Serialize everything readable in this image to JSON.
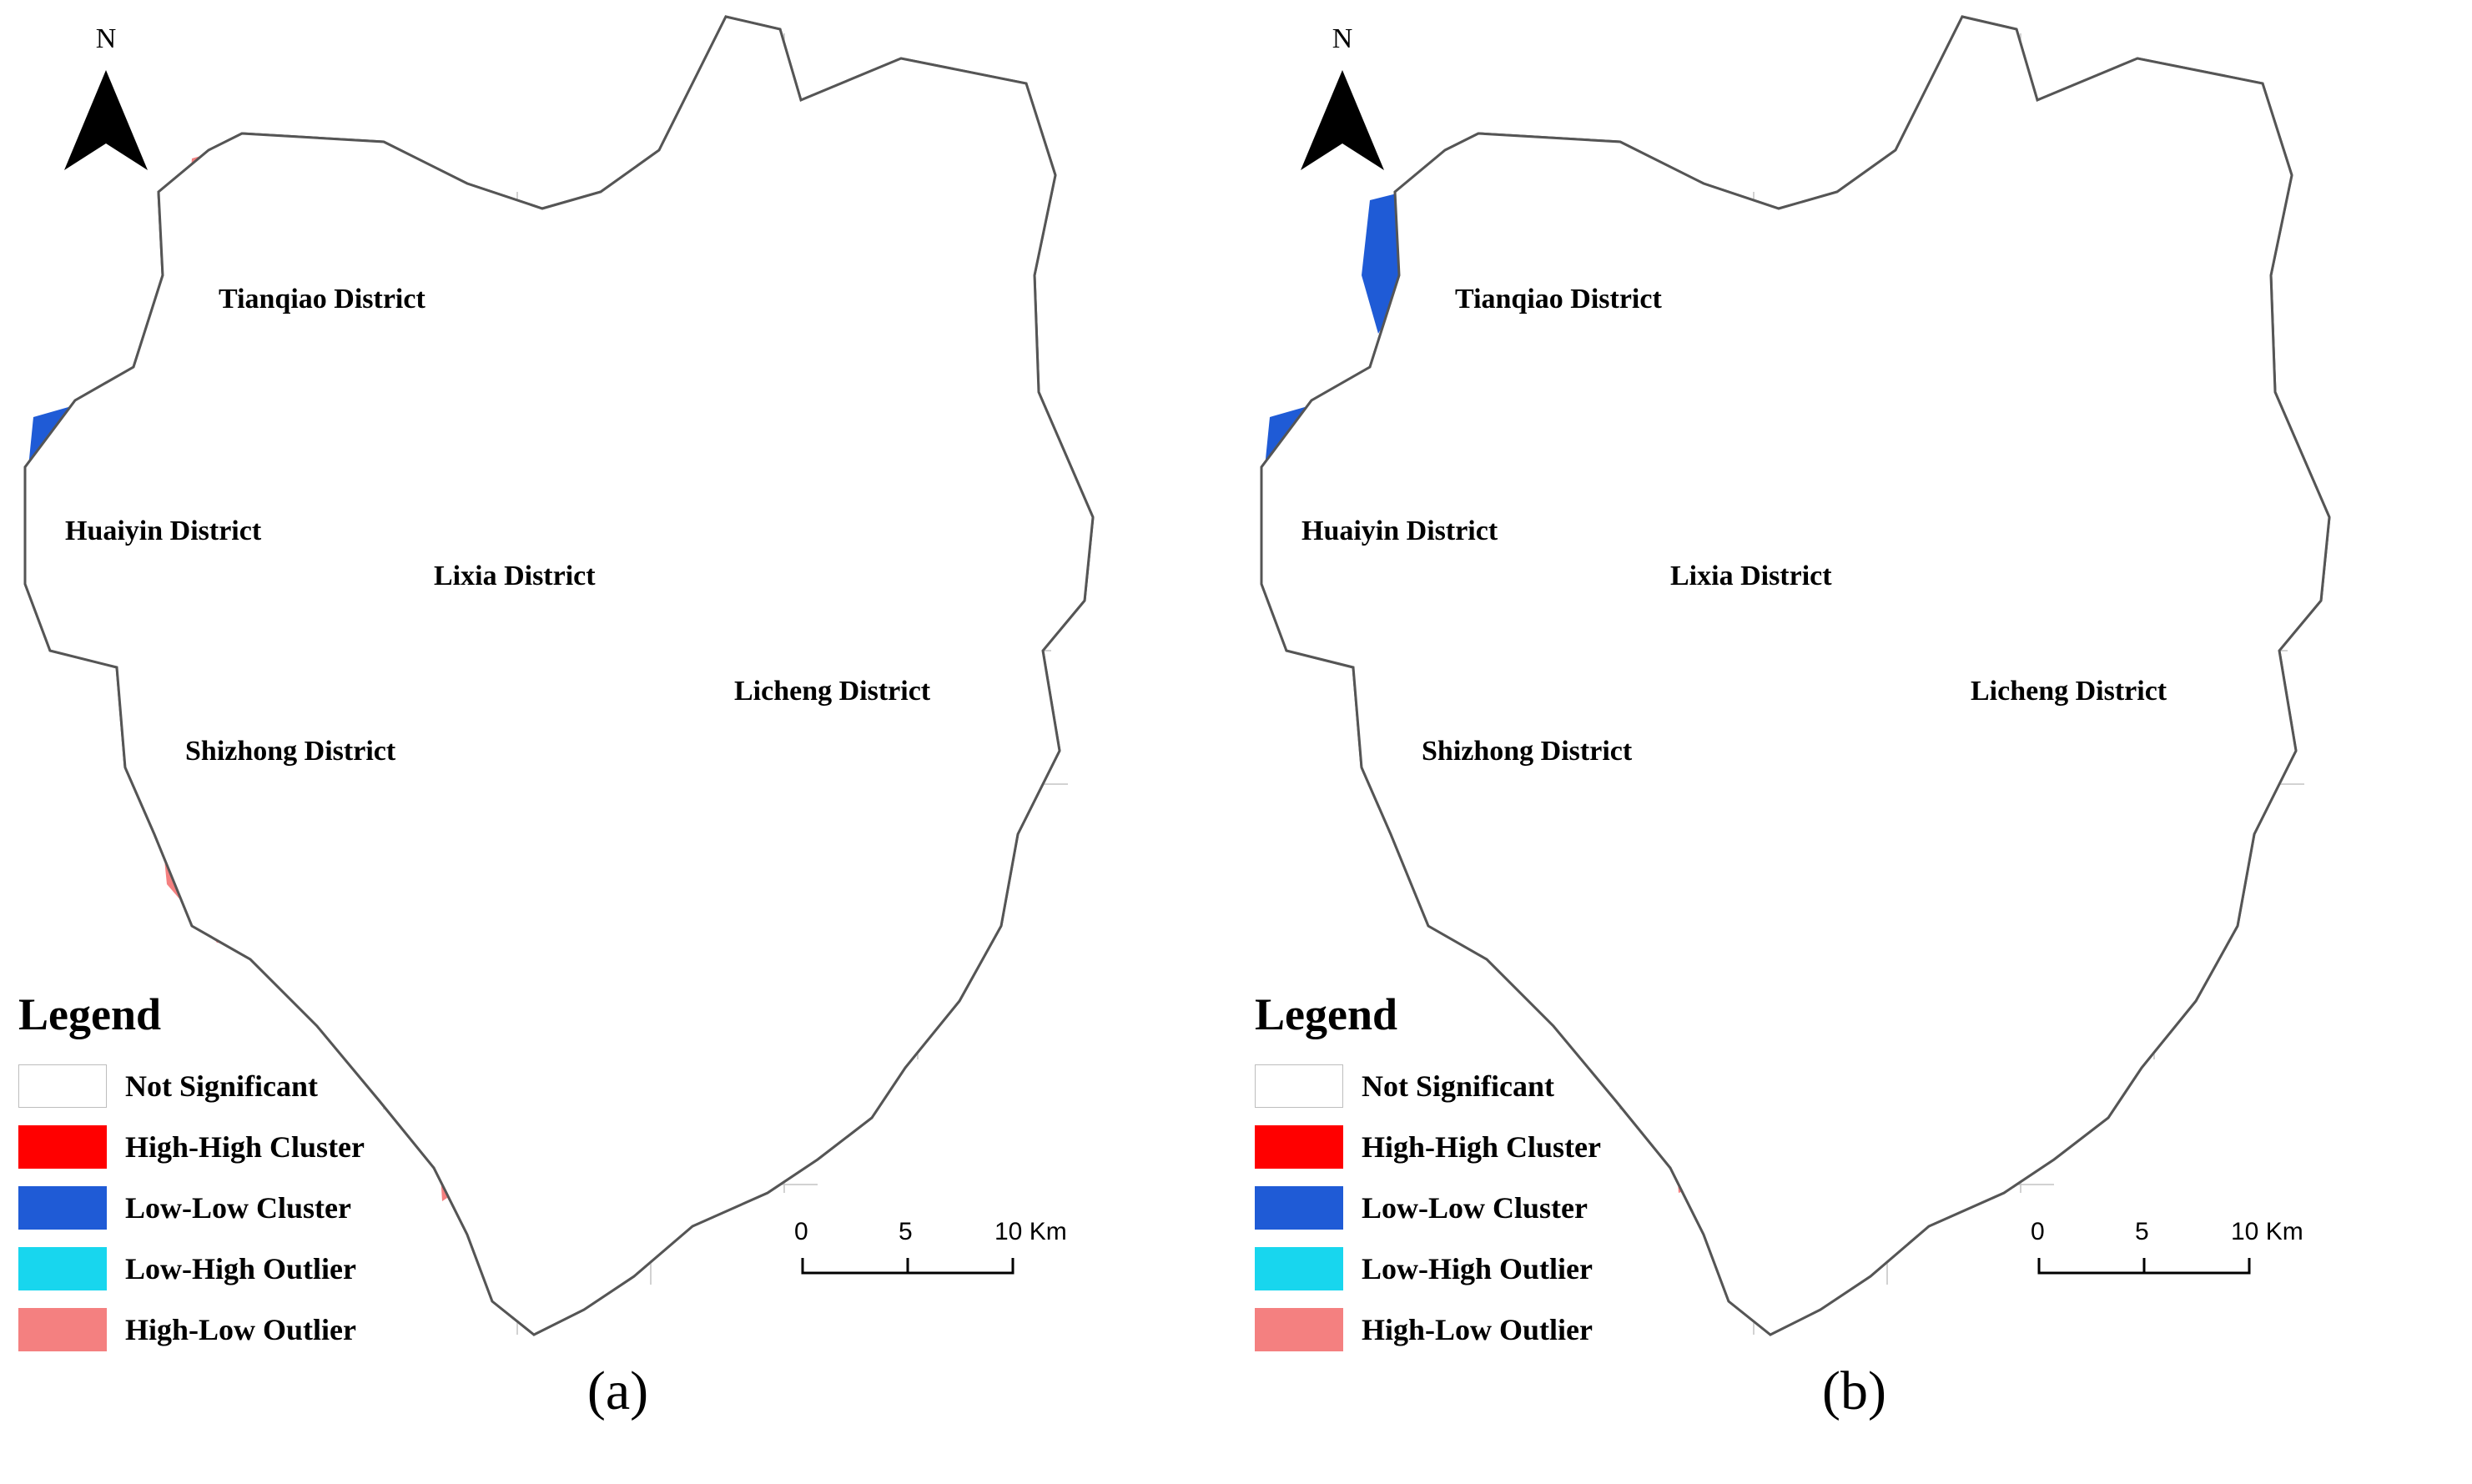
{
  "colors": {
    "not_significant": "#ffffff",
    "high_high": "#ff0000",
    "low_low": "#1f5bd6",
    "low_high": "#18d6ee",
    "high_low": "#f48080",
    "boundary": "#8a8a8a"
  },
  "north_arrow": {
    "letter": "N",
    "icon": "north-arrow-icon"
  },
  "legend": {
    "title": "Legend",
    "items": [
      {
        "label": "Not Significant",
        "color": "#ffffff"
      },
      {
        "label": "High-High Cluster",
        "color": "#ff0000"
      },
      {
        "label": "Low-Low Cluster",
        "color": "#1f5bd6"
      },
      {
        "label": "Low-High Outlier",
        "color": "#18d6ee"
      },
      {
        "label": "High-Low Outlier",
        "color": "#f48080"
      }
    ]
  },
  "scale_bar": {
    "labels": [
      "0",
      "5",
      "10 Km"
    ]
  },
  "districts": [
    "Tianqiao District",
    "Huaiyin District",
    "Lixia District",
    "Licheng District",
    "Shizhong District"
  ],
  "panels": [
    {
      "caption": "(a)"
    },
    {
      "caption": "(b)"
    }
  ]
}
